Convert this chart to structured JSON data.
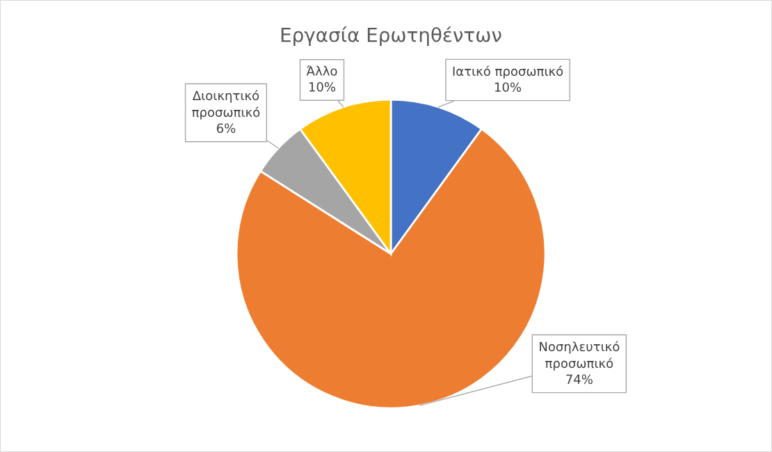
{
  "chart_data": {
    "type": "pie",
    "title": "Εργασία Ερωτηθέντων",
    "categories": [
      "Ιατικό προσωπικό",
      "Νοσηλευτικό προσωπικό",
      "Διοικητικό προσωπικό",
      "Άλλο"
    ],
    "values": [
      10,
      74,
      6,
      10
    ],
    "colors": [
      "#4472c4",
      "#ed7d31",
      "#a5a5a5",
      "#ffc000"
    ],
    "value_labels": [
      "10%",
      "74%",
      "6%",
      "10%"
    ],
    "legend": false
  }
}
